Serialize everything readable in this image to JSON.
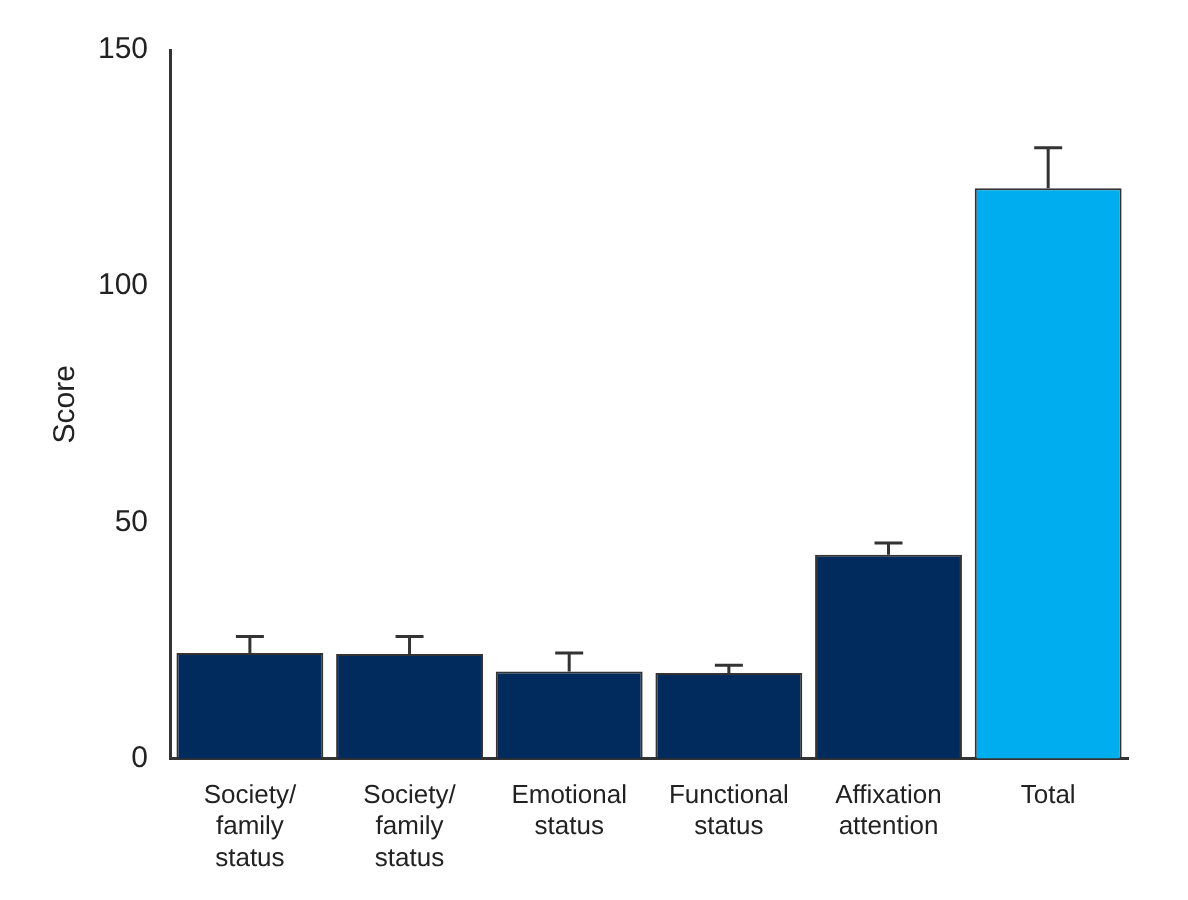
{
  "chart_data": {
    "type": "bar",
    "ylabel": "Score",
    "categories": [
      "Society/ family status",
      "Society/ family status",
      "Emotional status",
      "Functional status",
      "Affixation attention",
      "Total"
    ],
    "values": [
      22.3,
      22.1,
      18.4,
      18.1,
      43.1,
      120.7
    ],
    "errors": [
      [
        22.3,
        25.8
      ],
      [
        22.1,
        25.8
      ],
      [
        18.4,
        22.3
      ],
      [
        18.1,
        19.7
      ],
      [
        43.1,
        45.6
      ],
      [
        120.7,
        129.3
      ]
    ],
    "colors": [
      "#002b5c",
      "#002b5c",
      "#002b5c",
      "#002b5c",
      "#002b5c",
      "#00aeef"
    ],
    "ylim": [
      0,
      150
    ],
    "yticks": [
      0,
      50,
      100,
      150
    ],
    "grid": false,
    "legend": false
  }
}
